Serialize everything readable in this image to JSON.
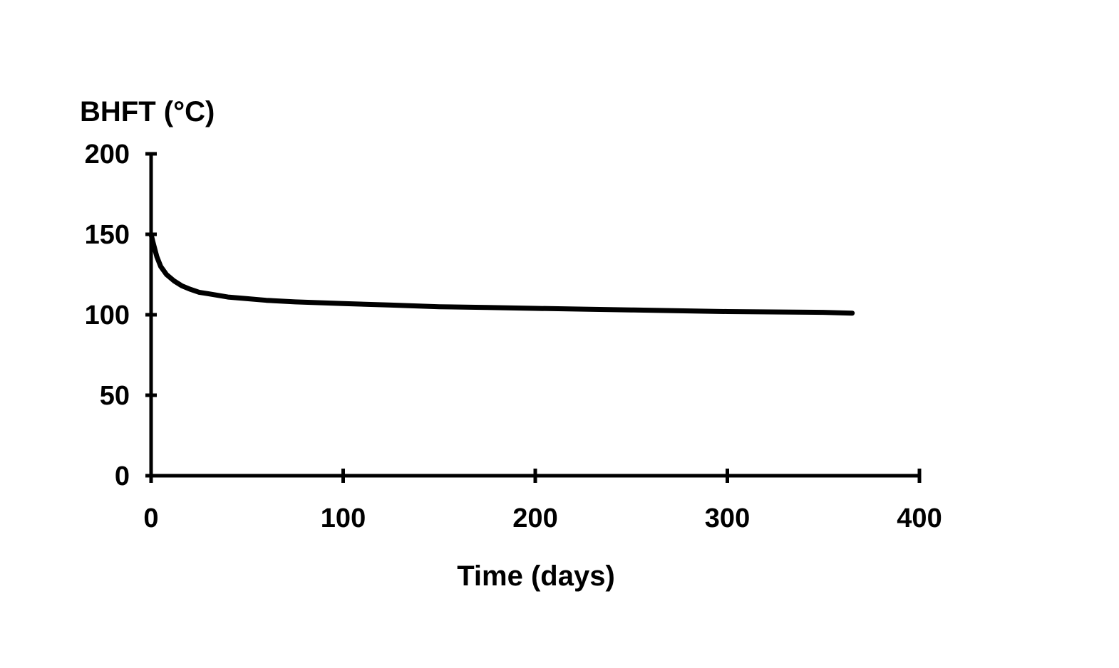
{
  "chart_data": {
    "type": "line",
    "xlabel": "Time (days)",
    "ylabel": "BHFT (°C)",
    "xlim": [
      0,
      400
    ],
    "ylim": [
      0,
      200
    ],
    "x_ticks": [
      0,
      100,
      200,
      300,
      400
    ],
    "y_ticks": [
      0,
      50,
      100,
      150,
      200
    ],
    "x_tick_labels": [
      "0",
      "100",
      "200",
      "300",
      "400"
    ],
    "y_tick_labels": [
      "0",
      "50",
      "100",
      "150",
      "200"
    ],
    "grid": false,
    "legend": "none",
    "line_color": "#000000",
    "series": [
      {
        "x": [
          0,
          1,
          3,
          5,
          8,
          12,
          16,
          20,
          25,
          30,
          40,
          50,
          60,
          75,
          100,
          125,
          150,
          175,
          200,
          225,
          250,
          300,
          350,
          365
        ],
        "y": [
          150,
          145,
          136,
          130,
          125,
          121,
          118,
          116,
          114,
          113,
          111,
          110,
          109,
          108,
          107,
          106,
          105,
          104.5,
          104,
          103.5,
          103,
          102,
          101.5,
          101
        ]
      }
    ]
  }
}
